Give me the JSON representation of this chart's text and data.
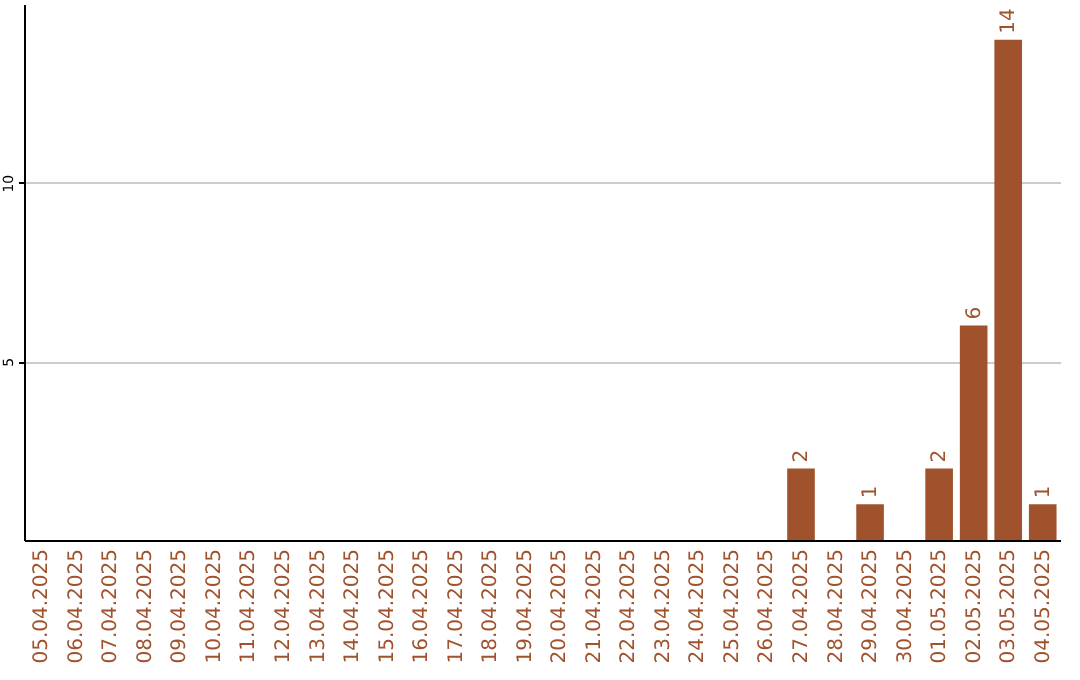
{
  "chart_data": {
    "type": "bar",
    "categories": [
      "05.04.2025",
      "06.04.2025",
      "07.04.2025",
      "08.04.2025",
      "09.04.2025",
      "10.04.2025",
      "11.04.2025",
      "12.04.2025",
      "13.04.2025",
      "14.04.2025",
      "15.04.2025",
      "16.04.2025",
      "17.04.2025",
      "18.04.2025",
      "19.04.2025",
      "20.04.2025",
      "21.04.2025",
      "22.04.2025",
      "23.04.2025",
      "24.04.2025",
      "25.04.2025",
      "26.04.2025",
      "27.04.2025",
      "28.04.2025",
      "29.04.2025",
      "30.04.2025",
      "01.05.2025",
      "02.05.2025",
      "03.05.2025",
      "04.05.2025"
    ],
    "values": [
      0,
      0,
      0,
      0,
      0,
      0,
      0,
      0,
      0,
      0,
      0,
      0,
      0,
      0,
      0,
      0,
      0,
      0,
      0,
      0,
      0,
      0,
      2,
      0,
      1,
      0,
      2,
      6,
      14,
      1
    ],
    "value_labels": [
      null,
      null,
      null,
      null,
      null,
      null,
      null,
      null,
      null,
      null,
      null,
      null,
      null,
      null,
      null,
      null,
      null,
      null,
      null,
      null,
      null,
      null,
      "2",
      null,
      "1",
      null,
      "2",
      "6",
      "14",
      "1"
    ],
    "color": "#a0522d",
    "ylim": [
      0,
      15
    ],
    "yticks": [
      5,
      10
    ],
    "grid": "y"
  }
}
